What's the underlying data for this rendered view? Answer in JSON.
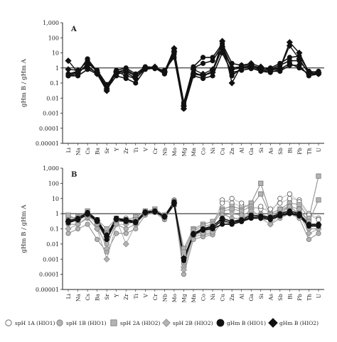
{
  "chart_data": [
    {
      "type": "line",
      "panel_label": "A",
      "ylabel": "gHm B / gHm A",
      "yscale": "log",
      "ylim": [
        1e-05,
        1000
      ],
      "yticks": [
        "0.00001",
        "0.0001",
        "0.001",
        "0.01",
        "0.1",
        "1",
        "10",
        "100",
        "1,000"
      ],
      "reference_line": 1,
      "categories": [
        "Li",
        "Na",
        "Cs",
        "Ba",
        "Sr",
        "Y",
        "Zr",
        "Ti",
        "V",
        "Cr",
        "Nb",
        "Mo",
        "Mg",
        "Mn",
        "Co",
        "Ni",
        "Cu",
        "Zn",
        "Al",
        "Ga",
        "Si",
        "As",
        "Sb",
        "Bi",
        "Pb",
        "Th",
        "U"
      ],
      "series": [
        {
          "marker": "circle-black",
          "values": [
            0.35,
            0.5,
            4,
            0.6,
            0.05,
            0.5,
            0.8,
            0.3,
            1,
            1,
            0.4,
            10,
            0.004,
            1.2,
            5,
            5,
            40,
            2,
            1.5,
            1.5,
            1,
            1,
            2,
            5,
            6,
            0.6,
            0.5
          ]
        },
        {
          "marker": "circle-black",
          "values": [
            0.3,
            0.3,
            0.8,
            0.4,
            0.04,
            0.3,
            0.2,
            0.1,
            0.8,
            1,
            0.5,
            8,
            0.003,
            0.5,
            0.3,
            0.6,
            20,
            0.3,
            1,
            1,
            0.6,
            0.5,
            0.8,
            2,
            1,
            0.4,
            0.4
          ]
        },
        {
          "marker": "circle-black",
          "values": [
            0.4,
            0.6,
            3,
            0.5,
            0.06,
            0.7,
            1,
            0.4,
            1.2,
            1.1,
            0.6,
            15,
            0.005,
            1,
            2,
            3,
            30,
            1,
            1.2,
            1.2,
            0.8,
            0.8,
            1.5,
            3,
            3,
            0.5,
            0.6
          ]
        },
        {
          "marker": "circle-black",
          "values": [
            0.3,
            0.4,
            2,
            0.7,
            0.08,
            0.4,
            0.5,
            0.2,
            0.9,
            0.9,
            0.7,
            5,
            0.002,
            0.3,
            0.2,
            0.3,
            10,
            0.5,
            0.7,
            0.9,
            0.7,
            0.6,
            0.6,
            1.5,
            1.5,
            0.3,
            0.4
          ]
        },
        {
          "marker": "diamond-black",
          "values": [
            3,
            0.5,
            1.5,
            0.4,
            0.03,
            0.6,
            0.3,
            0.2,
            1,
            1.2,
            0.5,
            20,
            0.002,
            0.4,
            0.3,
            0.5,
            60,
            0.1,
            1.5,
            2,
            1.2,
            0.8,
            1,
            50,
            10,
            0.5,
            0.4
          ]
        },
        {
          "marker": "diamond-black",
          "values": [
            0.8,
            0.7,
            1,
            0.5,
            0.04,
            0.5,
            0.6,
            0.3,
            1.1,
            1,
            0.6,
            12,
            0.003,
            0.8,
            0.4,
            0.8,
            25,
            0.8,
            1,
            1.5,
            0.9,
            0.7,
            0.9,
            30,
            4,
            0.4,
            0.5
          ]
        }
      ]
    },
    {
      "type": "line",
      "panel_label": "B",
      "ylabel": "gHm B / gHm A",
      "yscale": "log",
      "ylim": [
        1e-05,
        1000
      ],
      "yticks": [
        "0.00001",
        "0.0001",
        "0.001",
        "0.01",
        "0.1",
        "1",
        "10",
        "100",
        "1,000"
      ],
      "reference_line": 1,
      "categories": [
        "Li",
        "Na",
        "Cs",
        "Ba",
        "Sr",
        "Y",
        "Zr",
        "Ti",
        "V",
        "Cr",
        "Nb",
        "Mo",
        "Mg",
        "Mn",
        "Co",
        "Ni",
        "Cu",
        "Zn",
        "Al",
        "Ga",
        "Si",
        "As",
        "Sb",
        "Bi",
        "Pb",
        "Th",
        "U"
      ],
      "series": [
        {
          "marker": "circle-white",
          "values": [
            0.3,
            0.5,
            1,
            0.3,
            0.05,
            0.4,
            0.5,
            0.3,
            1.5,
            1.5,
            0.8,
            5,
            0.001,
            0.05,
            0.08,
            0.1,
            8,
            5,
            3,
            3,
            2,
            2,
            5,
            10,
            8,
            1,
            0.5
          ]
        },
        {
          "marker": "circle-white",
          "values": [
            0.5,
            0.3,
            0.8,
            0.2,
            0.02,
            0.3,
            0.3,
            0.5,
            1.2,
            1.8,
            0.6,
            8,
            0.002,
            0.08,
            0.1,
            0.2,
            5,
            10,
            5,
            2,
            3,
            1,
            10,
            20,
            6,
            0.8,
            0.4
          ]
        },
        {
          "marker": "circle-grey",
          "values": [
            0.2,
            0.2,
            0.5,
            0.1,
            0.01,
            0.2,
            0.1,
            0.2,
            1,
            1.5,
            0.5,
            6,
            0.0005,
            0.03,
            0.04,
            0.05,
            1,
            0.5,
            0.5,
            1,
            1,
            0.5,
            1,
            3,
            1,
            0.1,
            0.1
          ]
        },
        {
          "marker": "circle-grey",
          "values": [
            0.05,
            0.1,
            0.2,
            0.02,
            0.003,
            0.05,
            0.05,
            0.1,
            0.8,
            1.2,
            0.4,
            4,
            0.0001,
            0.02,
            0.03,
            0.04,
            0.3,
            0.2,
            0.3,
            0.5,
            0.5,
            0.2,
            0.5,
            1,
            0.5,
            0.02,
            0.05
          ]
        },
        {
          "marker": "square-grey",
          "values": [
            0.5,
            0.6,
            1.5,
            0.4,
            0.1,
            0.5,
            0.4,
            0.6,
            1.5,
            2,
            0.8,
            5,
            0.005,
            0.1,
            0.2,
            0.3,
            2,
            3,
            2,
            5,
            100,
            1,
            2,
            5,
            4,
            0.5,
            300
          ]
        },
        {
          "marker": "square-grey",
          "values": [
            0.8,
            0.4,
            1,
            0.3,
            0.05,
            0.3,
            0.3,
            0.4,
            1.2,
            1.5,
            0.7,
            4,
            0.003,
            0.08,
            0.15,
            0.2,
            1.5,
            2,
            1.5,
            3,
            20,
            0.8,
            1.5,
            3,
            2,
            0.3,
            8
          ]
        },
        {
          "marker": "diamond-grey",
          "values": [
            0.1,
            0.2,
            0.6,
            0.1,
            0.001,
            0.2,
            0.2,
            0.3,
            1,
            1.5,
            0.5,
            5,
            0.0003,
            0.05,
            0.06,
            0.08,
            0.5,
            0.3,
            0.5,
            2,
            0.5,
            0.2,
            1,
            2,
            1,
            0.05,
            0.1
          ]
        },
        {
          "marker": "diamond-grey",
          "values": [
            0.3,
            0.4,
            0.8,
            0.2,
            0.005,
            0.4,
            0.01,
            0.2,
            1.2,
            1.3,
            0.6,
            7,
            0.0002,
            0.04,
            0.05,
            0.06,
            0.8,
            1,
            0.8,
            1.5,
            0.8,
            0.5,
            2,
            3,
            2,
            0.2,
            0.2
          ]
        },
        {
          "marker": "circle-black",
          "values": [
            0.35,
            0.5,
            1.2,
            0.4,
            0.04,
            0.5,
            0.4,
            0.3,
            1.3,
            1.5,
            0.7,
            6,
            0.001,
            0.05,
            0.1,
            0.15,
            0.5,
            0.3,
            0.4,
            0.8,
            0.7,
            0.6,
            1,
            1.5,
            1,
            0.2,
            0.2
          ]
        },
        {
          "marker": "circle-black",
          "values": [
            0.25,
            0.4,
            0.9,
            0.3,
            0.02,
            0.4,
            0.3,
            0.25,
            1.1,
            1.3,
            0.6,
            4,
            0.0008,
            0.04,
            0.08,
            0.1,
            0.2,
            0.2,
            0.3,
            0.5,
            0.5,
            0.4,
            0.7,
            1,
            0.7,
            0.15,
            0.15
          ]
        },
        {
          "marker": "diamond-black",
          "values": [
            0.3,
            0.4,
            1,
            0.35,
            0.03,
            0.45,
            0.35,
            0.28,
            1.2,
            1.4,
            0.65,
            5,
            0.0012,
            0.045,
            0.09,
            0.12,
            0.35,
            0.25,
            0.35,
            0.6,
            0.6,
            0.5,
            0.8,
            1.2,
            0.8,
            0.18,
            0.18
          ]
        }
      ]
    }
  ],
  "legend": [
    {
      "marker": "circle-white",
      "label": "spH 1A (HIO1)"
    },
    {
      "marker": "circle-grey",
      "label": "spH 1B (HIO1)"
    },
    {
      "marker": "square-grey",
      "label": "spH 2A (HIO2)"
    },
    {
      "marker": "diamond-grey",
      "label": "spH 2B (HIO2)"
    },
    {
      "marker": "circle-black",
      "label": "gHm B (HIO1)"
    },
    {
      "marker": "diamond-black",
      "label": "gHm B (HIO2)"
    }
  ],
  "colors": {
    "black": "#111111",
    "grey_fill": "#b3b3b3",
    "grey_line": "#9a9a9a",
    "white_fill": "#ffffff"
  }
}
